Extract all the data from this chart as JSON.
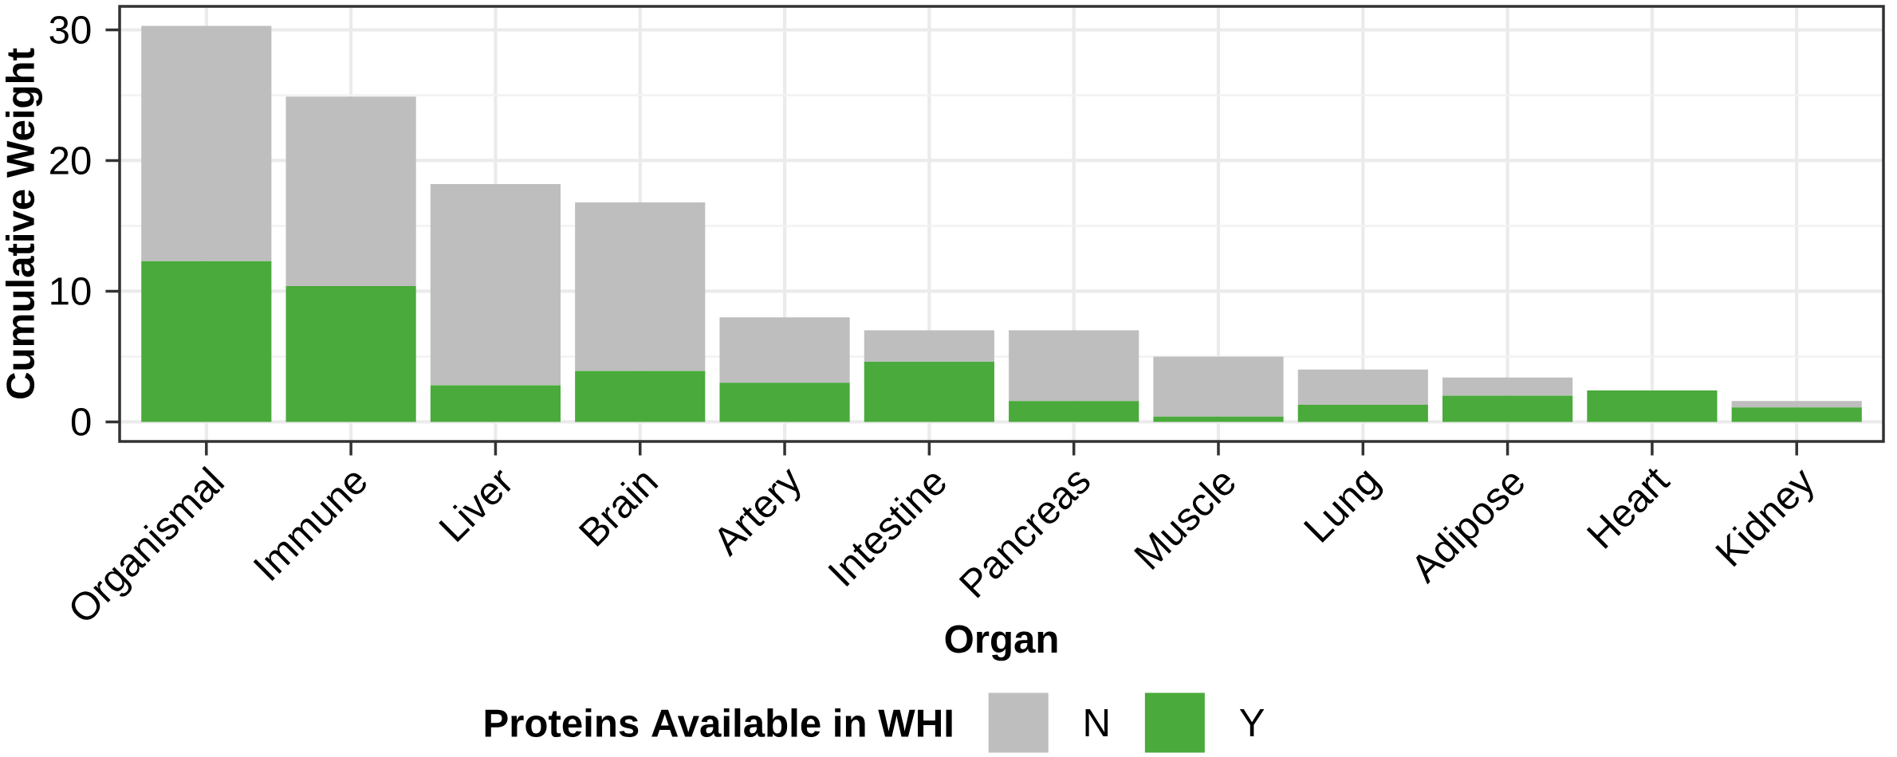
{
  "chart_data": {
    "type": "bar",
    "stacked": true,
    "xlabel": "Organ",
    "ylabel": "Cumulative Weight",
    "legend_title": "Proteins Available in WHI",
    "categories": [
      "Organismal",
      "Immune",
      "Liver",
      "Brain",
      "Artery",
      "Intestine",
      "Pancreas",
      "Muscle",
      "Lung",
      "Adipose",
      "Heart",
      "Kidney"
    ],
    "series": [
      {
        "name": "Y",
        "color": "#4aaa3b",
        "values": [
          12.3,
          10.4,
          2.8,
          3.9,
          3.0,
          4.6,
          1.6,
          0.4,
          1.3,
          2.0,
          2.4,
          1.1
        ]
      },
      {
        "name": "N",
        "color": "#bebebe",
        "values": [
          18.0,
          14.5,
          15.4,
          12.9,
          5.0,
          2.4,
          5.4,
          4.6,
          2.7,
          1.4,
          0,
          0.5
        ]
      }
    ],
    "ylim": [
      -1.5,
      31.8
    ],
    "yticks": [
      0,
      10,
      20,
      30
    ],
    "grid": true,
    "legend": "bottom"
  }
}
